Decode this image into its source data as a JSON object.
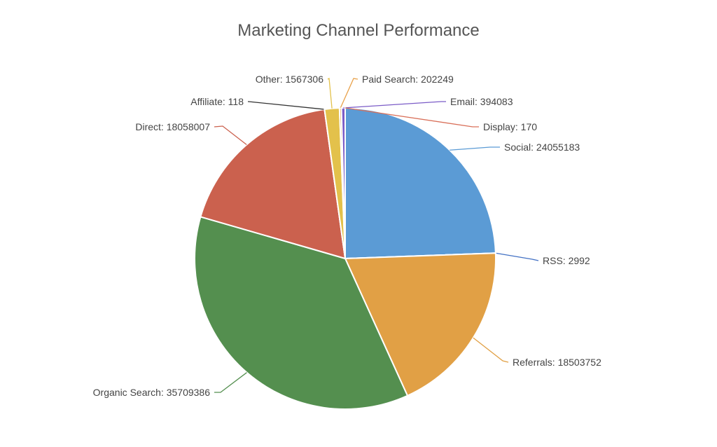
{
  "chart_data": {
    "type": "pie",
    "title": "Marketing Channel Performance",
    "slices": [
      {
        "name": "Social",
        "value": 24055183,
        "color": "#5b9bd5"
      },
      {
        "name": "RSS",
        "value": 2992,
        "color": "#4472c4"
      },
      {
        "name": "Referrals",
        "value": 18503752,
        "color": "#e1a045"
      },
      {
        "name": "Organic Search",
        "value": 35709386,
        "color": "#548f4f"
      },
      {
        "name": "Direct",
        "value": 18058007,
        "color": "#cb614e"
      },
      {
        "name": "Affiliate",
        "value": 118,
        "color": "#333333"
      },
      {
        "name": "Other",
        "value": 1567306,
        "color": "#e3c14b"
      },
      {
        "name": "Paid Search",
        "value": 202249,
        "color": "#e8a14a"
      },
      {
        "name": "Email",
        "value": 394083,
        "color": "#7b5cc7"
      },
      {
        "name": "Display",
        "value": 170,
        "color": "#d9705a"
      }
    ],
    "labels": [
      {
        "text": "Social: 24055183"
      },
      {
        "text": "RSS: 2992"
      },
      {
        "text": "Referrals: 18503752"
      },
      {
        "text": "Organic Search: 35709386"
      },
      {
        "text": "Direct: 18058007"
      },
      {
        "text": "Affiliate: 118"
      },
      {
        "text": "Other: 1567306"
      },
      {
        "text": "Paid Search: 202249"
      },
      {
        "text": "Email: 394083"
      },
      {
        "text": "Display: 170"
      }
    ]
  }
}
